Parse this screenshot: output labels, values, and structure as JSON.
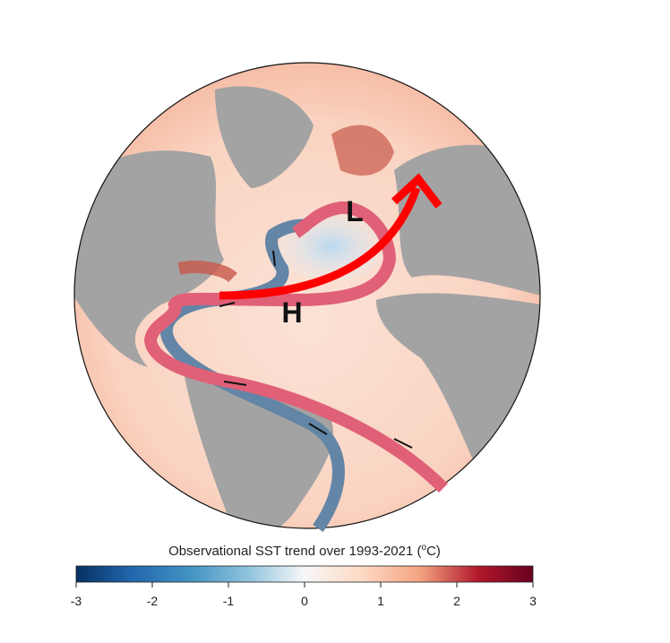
{
  "map": {
    "labels": [
      "L",
      "H"
    ]
  },
  "colorbar": {
    "label": {
      "text": "Observational SST trend over 1993-2021 (",
      "superscript": "o",
      "unit": "C)"
    },
    "lim": [
      -3,
      3
    ],
    "ticks": [
      -3,
      -2,
      -1,
      0,
      1,
      2,
      3
    ]
  }
}
